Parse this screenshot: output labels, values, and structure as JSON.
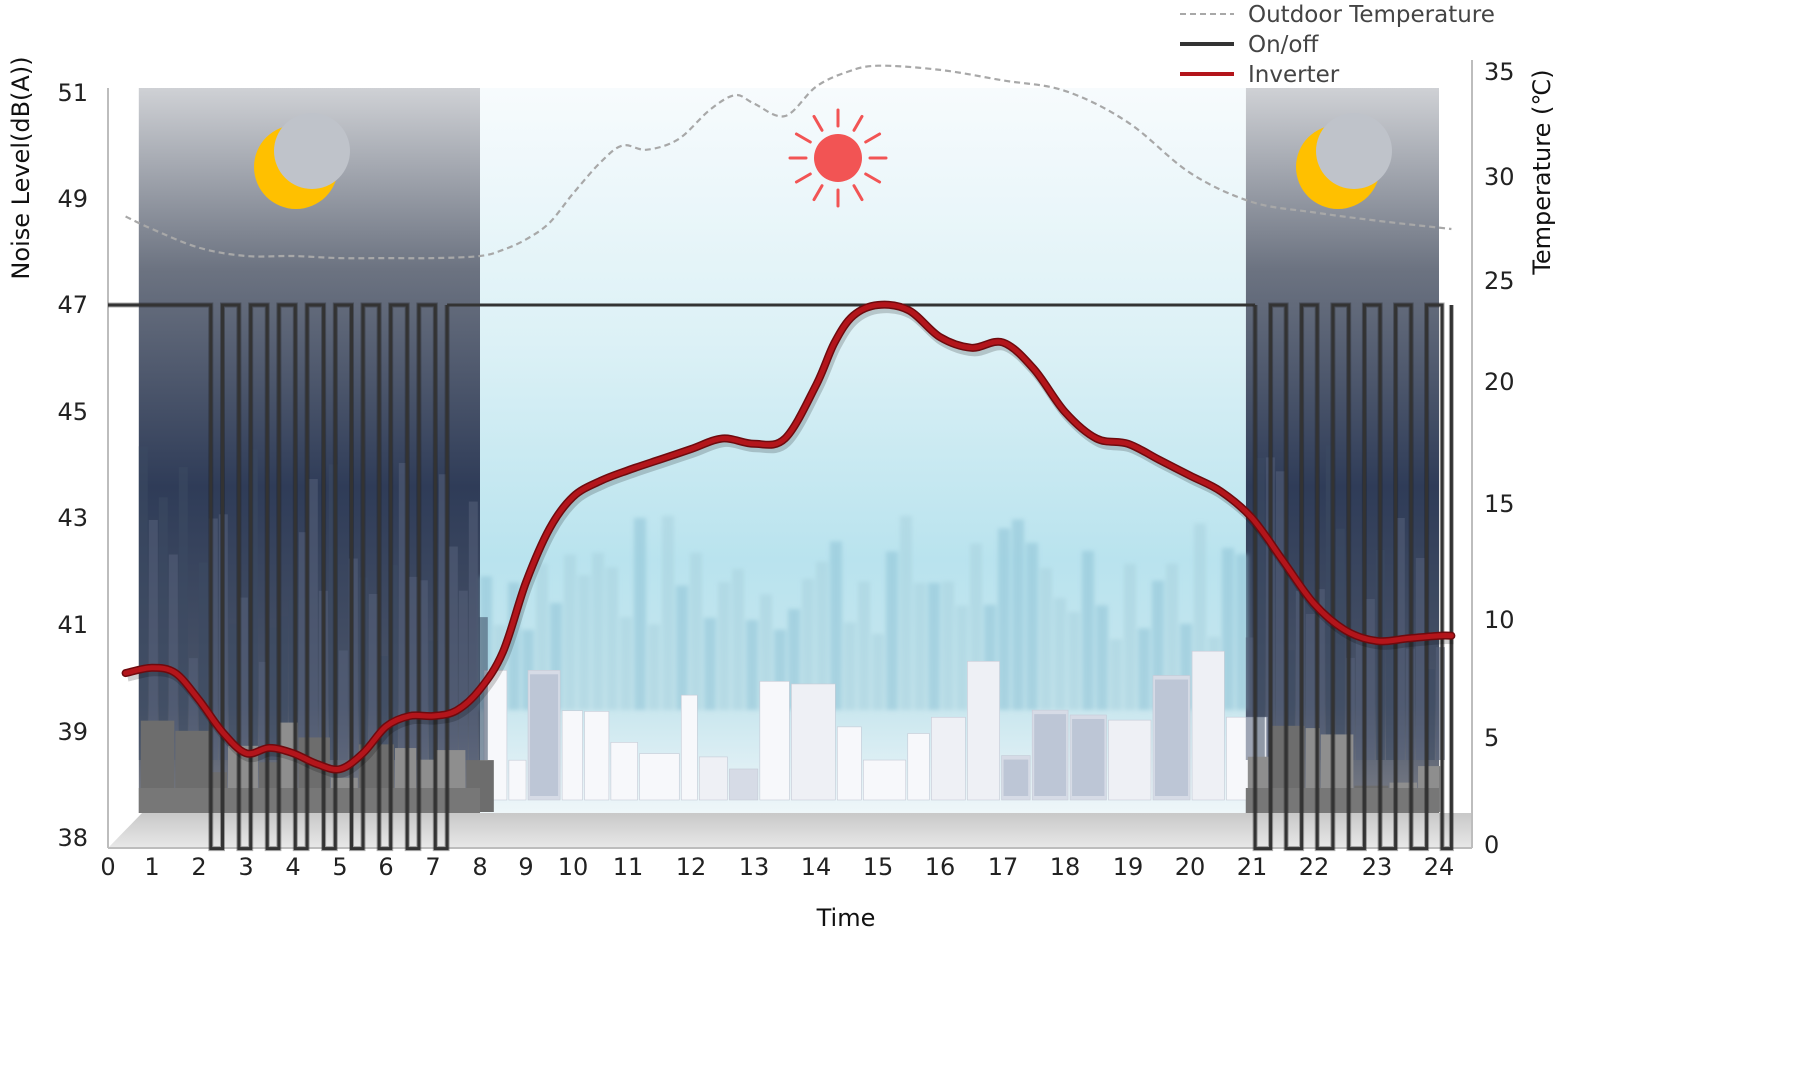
{
  "chart_data": {
    "type": "line",
    "xlabel": "Time",
    "ylabel_left": "Noise Level(dB(A))",
    "ylabel_right": "Temperature (℃)",
    "x_ticks": [
      0,
      1,
      2,
      3,
      4,
      5,
      6,
      7,
      8,
      9,
      10,
      11,
      12,
      13,
      14,
      15,
      16,
      17,
      18,
      19,
      20,
      21,
      22,
      23,
      24
    ],
    "y_left_ticks": [
      38,
      39,
      41,
      43,
      45,
      47,
      49,
      51
    ],
    "y_right_ticks": [
      0,
      5,
      10,
      15,
      20,
      25,
      30,
      35
    ],
    "xlim": [
      0,
      24
    ],
    "legend": {
      "position": "top-right",
      "entries": [
        "Outdoor Temperature",
        "On/off",
        "Inverter"
      ]
    },
    "colors": {
      "temperature": "#a8a8a8",
      "onoff": "#333333",
      "inverter": "#b3151b",
      "night_sky": "#3b4a66",
      "day_sky": "#cfeaf2",
      "sun": "#f25454",
      "moon": "#ffc000"
    },
    "night_periods": [
      [
        0.7,
        8
      ],
      [
        20.9,
        24
      ]
    ],
    "series": [
      {
        "name": "Outdoor Temperature",
        "axis": "right",
        "style": "dashed",
        "points": [
          [
            0.4,
            28.1
          ],
          [
            1.0,
            27.5
          ],
          [
            2.0,
            26.6
          ],
          [
            3.0,
            26.2
          ],
          [
            4.0,
            26.2
          ],
          [
            5.0,
            26.1
          ],
          [
            6.0,
            26.1
          ],
          [
            7.0,
            26.1
          ],
          [
            8.0,
            26.2
          ],
          [
            8.5,
            26.5
          ],
          [
            9.0,
            27.0
          ],
          [
            9.5,
            27.8
          ],
          [
            10.0,
            29.2
          ],
          [
            10.5,
            30.7
          ],
          [
            10.9,
            31.5
          ],
          [
            11.3,
            31.3
          ],
          [
            11.8,
            31.8
          ],
          [
            12.3,
            33.2
          ],
          [
            12.7,
            33.9
          ],
          [
            13.0,
            33.5
          ],
          [
            13.5,
            32.9
          ],
          [
            14.0,
            34.3
          ],
          [
            14.5,
            35.0
          ],
          [
            15.0,
            35.3
          ],
          [
            16.0,
            35.1
          ],
          [
            17.0,
            34.6
          ],
          [
            18.0,
            34.1
          ],
          [
            19.0,
            32.6
          ],
          [
            20.0,
            30.2
          ],
          [
            21.0,
            28.8
          ],
          [
            22.0,
            28.3
          ],
          [
            23.0,
            27.9
          ],
          [
            24.2,
            27.5
          ]
        ]
      },
      {
        "name": "On/off",
        "axis": "left",
        "style": "solid",
        "steady_level": 47,
        "min_level": 37.9,
        "night1_cycles": [
          [
            2.25,
            2.5
          ],
          [
            2.85,
            3.1
          ],
          [
            3.45,
            3.7
          ],
          [
            4.05,
            4.3
          ],
          [
            4.65,
            4.9
          ],
          [
            5.25,
            5.5
          ],
          [
            5.85,
            6.1
          ],
          [
            6.45,
            6.7
          ],
          [
            7.05,
            7.3
          ]
        ],
        "night2_cycles": [
          [
            21.05,
            21.3
          ],
          [
            21.55,
            21.8
          ],
          [
            22.05,
            22.3
          ],
          [
            22.55,
            22.8
          ],
          [
            23.05,
            23.3
          ],
          [
            23.55,
            23.8
          ],
          [
            24.05,
            24.2
          ]
        ]
      },
      {
        "name": "Inverter",
        "axis": "left",
        "style": "solid",
        "points": [
          [
            0.4,
            40.1
          ],
          [
            1.0,
            40.2
          ],
          [
            1.5,
            40.1
          ],
          [
            2.0,
            39.6
          ],
          [
            2.5,
            39.0
          ],
          [
            3.0,
            38.8
          ],
          [
            3.5,
            38.85
          ],
          [
            4.0,
            38.8
          ],
          [
            4.5,
            38.7
          ],
          [
            5.0,
            38.65
          ],
          [
            5.5,
            38.8
          ],
          [
            6.0,
            39.1
          ],
          [
            6.5,
            39.3
          ],
          [
            7.0,
            39.3
          ],
          [
            7.5,
            39.4
          ],
          [
            8.0,
            39.8
          ],
          [
            8.5,
            40.5
          ],
          [
            9.0,
            41.8
          ],
          [
            9.5,
            42.8
          ],
          [
            10.0,
            43.4
          ],
          [
            10.5,
            43.7
          ],
          [
            11.0,
            43.9
          ],
          [
            11.5,
            44.1
          ],
          [
            12.0,
            44.3
          ],
          [
            12.5,
            44.5
          ],
          [
            13.0,
            44.4
          ],
          [
            13.5,
            44.5
          ],
          [
            14.0,
            45.5
          ],
          [
            14.3,
            46.3
          ],
          [
            14.6,
            46.8
          ],
          [
            15.0,
            47.0
          ],
          [
            15.5,
            46.9
          ],
          [
            16.0,
            46.4
          ],
          [
            16.5,
            46.2
          ],
          [
            17.0,
            46.3
          ],
          [
            17.5,
            45.8
          ],
          [
            18.0,
            45.0
          ],
          [
            18.5,
            44.5
          ],
          [
            19.0,
            44.4
          ],
          [
            19.5,
            44.1
          ],
          [
            20.0,
            43.8
          ],
          [
            20.5,
            43.5
          ],
          [
            21.0,
            43.0
          ],
          [
            21.5,
            42.2
          ],
          [
            22.0,
            41.4
          ],
          [
            22.5,
            40.9
          ],
          [
            23.0,
            40.7
          ],
          [
            23.5,
            40.75
          ],
          [
            24.0,
            40.8
          ],
          [
            24.2,
            40.8
          ]
        ]
      }
    ]
  }
}
